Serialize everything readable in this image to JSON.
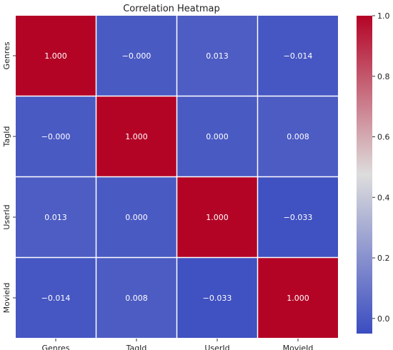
{
  "chart_data": {
    "type": "heatmap",
    "title": "Correlation Heatmap",
    "xlabel": "",
    "ylabel": "",
    "x_categories": [
      "Genres",
      "TagId",
      "UserId",
      "MovieId"
    ],
    "y_categories": [
      "Genres",
      "TagId",
      "UserId",
      "MovieId"
    ],
    "values": [
      [
        1.0,
        -0.0,
        0.013,
        -0.014
      ],
      [
        -0.0,
        1.0,
        0.0,
        0.008
      ],
      [
        0.013,
        0.0,
        1.0,
        -0.033
      ],
      [
        -0.014,
        0.008,
        -0.033,
        1.0
      ]
    ],
    "cell_labels": [
      [
        "1.000",
        "−0.000",
        "0.013",
        "−0.014"
      ],
      [
        "−0.000",
        "1.000",
        "0.000",
        "0.008"
      ],
      [
        "0.013",
        "0.000",
        "1.000",
        "−0.033"
      ],
      [
        "−0.014",
        "0.008",
        "−0.033",
        "1.000"
      ]
    ],
    "colorbar": {
      "range": [
        -0.05,
        1.0
      ],
      "ticks": [
        0.0,
        0.2,
        0.4,
        0.6,
        0.8,
        1.0
      ],
      "tick_labels": [
        "0.0",
        "0.2",
        "0.4",
        "0.6",
        "0.8",
        "1.0"
      ],
      "colormap": "coolwarm",
      "colors": {
        "low": "#3b4cc0",
        "mid": "#dddddd",
        "high": "#b40426"
      }
    },
    "grid": true
  }
}
